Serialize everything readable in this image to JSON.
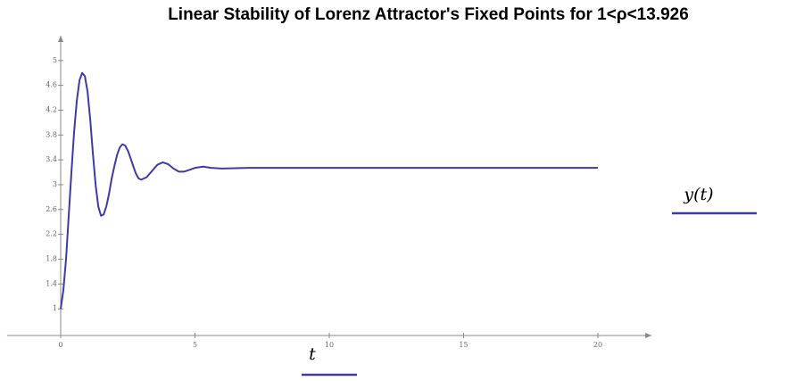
{
  "chart_data": {
    "type": "line",
    "title": "Linear Stability of Lorenz Attractor's Fixed Points for 1<ρ<13.926",
    "xlabel": "t",
    "ylabel": "y(t)",
    "x": [
      0,
      0.1,
      0.2,
      0.3,
      0.4,
      0.5,
      0.6,
      0.7,
      0.8,
      0.9,
      1.0,
      1.1,
      1.2,
      1.3,
      1.4,
      1.5,
      1.6,
      1.7,
      1.8,
      1.9,
      2.0,
      2.1,
      2.2,
      2.3,
      2.4,
      2.5,
      2.6,
      2.7,
      2.8,
      2.9,
      3.0,
      3.2,
      3.4,
      3.6,
      3.8,
      4.0,
      4.2,
      4.4,
      4.6,
      4.8,
      5.0,
      5.3,
      5.6,
      6.0,
      7,
      8,
      10,
      15,
      20
    ],
    "series": [
      {
        "color": "#3b3bab",
        "values": [
          1.0,
          1.3,
          1.8,
          2.5,
          3.2,
          3.85,
          4.35,
          4.68,
          4.8,
          4.75,
          4.5,
          4.05,
          3.5,
          3.0,
          2.65,
          2.5,
          2.52,
          2.65,
          2.85,
          3.1,
          3.3,
          3.48,
          3.6,
          3.65,
          3.63,
          3.55,
          3.43,
          3.3,
          3.18,
          3.1,
          3.08,
          3.12,
          3.22,
          3.32,
          3.36,
          3.33,
          3.26,
          3.21,
          3.21,
          3.24,
          3.27,
          3.29,
          3.27,
          3.26,
          3.27,
          3.27,
          3.27,
          3.27,
          3.27
        ]
      }
    ],
    "xlim": [
      -2,
      22
    ],
    "ylim": [
      0.57,
      5.4
    ],
    "xticks": [
      0,
      5,
      10,
      15,
      20
    ],
    "yticks": [
      1,
      1.4,
      1.8,
      2.2,
      2.6,
      3,
      3.4,
      3.8,
      4.2,
      4.6,
      5
    ]
  }
}
